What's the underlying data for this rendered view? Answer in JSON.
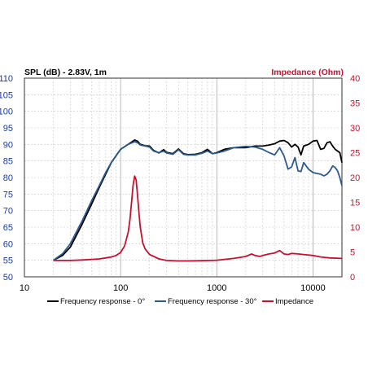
{
  "chart_data": {
    "type": "line",
    "left_axis_title": "SPL (dB) - 2.83V, 1m",
    "right_axis_title": "Impedance (Ohm)",
    "x_scale": "log",
    "xlim": [
      10,
      20000
    ],
    "x_ticks": [
      "10",
      "100",
      "1000",
      "10000"
    ],
    "ylim_left": [
      50,
      110
    ],
    "y_ticks_left": [
      "110",
      "105",
      "100",
      "95",
      "90",
      "85",
      "80",
      "75",
      "70",
      "65",
      "60",
      "55",
      "50"
    ],
    "ylim_right": [
      0,
      40
    ],
    "y_ticks_right": [
      "40",
      "35",
      "30",
      "25",
      "20",
      "15",
      "10",
      "5",
      "0"
    ],
    "grid": true,
    "legend_position": "bottom",
    "colors": {
      "left_axis": "#1a3a9c",
      "right_axis": "#c8102e",
      "grid": "#c8c8c8",
      "frame": "#333333"
    },
    "series": [
      {
        "name": "Frequency response - 0°",
        "axis": "left",
        "color": "#000000",
        "x": [
          20,
          25,
          30,
          40,
          50,
          60,
          70,
          80,
          100,
          120,
          140,
          150,
          160,
          180,
          200,
          220,
          250,
          280,
          300,
          350,
          400,
          450,
          500,
          600,
          700,
          800,
          900,
          1000,
          1200,
          1500,
          2000,
          2500,
          3000,
          3500,
          4000,
          4500,
          5000,
          5500,
          6000,
          6500,
          7000,
          7500,
          8000,
          9000,
          10000,
          11000,
          12000,
          13000,
          14000,
          15000,
          16000,
          17000,
          18000,
          19000,
          20000
        ],
        "y": [
          55,
          56.5,
          59,
          66,
          72,
          77,
          81,
          84.5,
          88.5,
          90,
          91.3,
          91,
          90,
          89.6,
          89.5,
          88.2,
          87.4,
          88.4,
          87.6,
          87.2,
          88.6,
          87.2,
          86.9,
          87,
          87.5,
          88.5,
          87.2,
          87.5,
          88.5,
          89,
          89,
          89.5,
          89.5,
          89.8,
          90.2,
          91,
          91.2,
          90.5,
          89.2,
          90,
          89.2,
          86.8,
          89.5,
          90,
          91,
          91.2,
          88.5,
          88.8,
          90.5,
          90.8,
          89.5,
          88.5,
          88,
          87.5,
          84.5
        ]
      },
      {
        "name": "Frequency response - 30°",
        "axis": "left",
        "color": "#2b5a8c",
        "x": [
          20,
          25,
          30,
          40,
          50,
          60,
          70,
          80,
          100,
          120,
          140,
          150,
          160,
          180,
          200,
          220,
          250,
          280,
          300,
          350,
          400,
          450,
          500,
          600,
          700,
          800,
          900,
          1000,
          1200,
          1500,
          2000,
          2500,
          3000,
          3500,
          4000,
          4500,
          5000,
          5500,
          6000,
          6500,
          7000,
          7500,
          8000,
          9000,
          10000,
          11000,
          12000,
          13000,
          14000,
          15000,
          16000,
          17000,
          18000,
          19000,
          20000
        ],
        "y": [
          55,
          57,
          60,
          67,
          73,
          77.5,
          81.5,
          84.5,
          88.5,
          90,
          90.8,
          90.5,
          89.8,
          89.5,
          89.2,
          88,
          87.5,
          88,
          87.4,
          87,
          88.4,
          87,
          86.8,
          86.8,
          87.3,
          88,
          87.2,
          87.4,
          88,
          89,
          89.4,
          89.2,
          88.5,
          87.5,
          86.8,
          89,
          86.5,
          82.5,
          83.2,
          86,
          82,
          81.8,
          84.5,
          82.5,
          81.5,
          81.2,
          81,
          80.5,
          81,
          82,
          83.5,
          83,
          82,
          80,
          77.5
        ]
      },
      {
        "name": "Impedance",
        "axis": "right",
        "color": "#c8102e",
        "x": [
          20,
          30,
          40,
          50,
          60,
          70,
          80,
          90,
          100,
          110,
          120,
          125,
          130,
          135,
          140,
          145,
          150,
          155,
          160,
          170,
          180,
          200,
          250,
          300,
          400,
          500,
          700,
          1000,
          1500,
          2000,
          2300,
          2500,
          2800,
          3000,
          3500,
          4000,
          4500,
          5000,
          5500,
          6000,
          7000,
          8000,
          10000,
          12000,
          15000,
          20000
        ],
        "y": [
          3.3,
          3.3,
          3.4,
          3.5,
          3.6,
          3.8,
          4.0,
          4.3,
          4.9,
          6.2,
          9.0,
          11.5,
          15,
          18.5,
          20.3,
          19.5,
          16.5,
          13,
          10,
          6.8,
          5.6,
          4.5,
          3.6,
          3.3,
          3.2,
          3.2,
          3.25,
          3.35,
          3.7,
          4.1,
          4.6,
          4.3,
          4.1,
          4.3,
          4.6,
          4.8,
          5.3,
          4.6,
          4.5,
          4.7,
          4.6,
          4.5,
          4.3,
          4.0,
          3.8,
          3.7
        ]
      }
    ]
  }
}
